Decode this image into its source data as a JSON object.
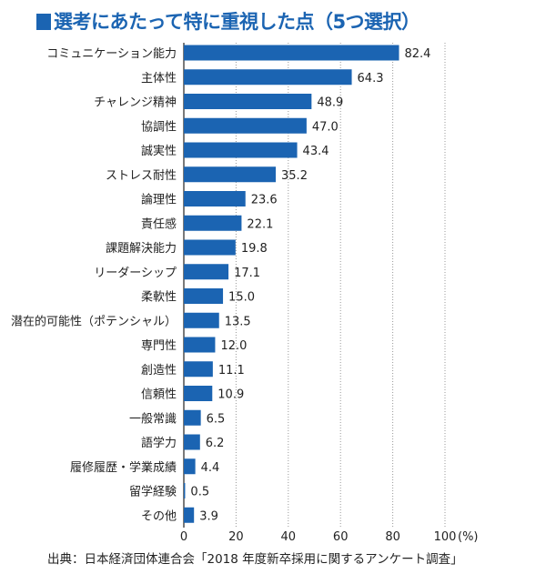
{
  "title": "選考にあたって特に重視した点（5つ選択）",
  "source": "出典：日本経済団体連合会「2018 年度新卒採用に関するアンケート調査」",
  "chart_data": {
    "type": "bar",
    "orientation": "horizontal",
    "title": "選考にあたって特に重視した点（5つ選択）",
    "categories": [
      "コミュニケーション能力",
      "主体性",
      "チャレンジ精神",
      "協調性",
      "誠実性",
      "ストレス耐性",
      "論理性",
      "責任感",
      "課題解決能力",
      "リーダーシップ",
      "柔軟性",
      "潜在的可能性（ポテンシャル）",
      "専門性",
      "創造性",
      "信頼性",
      "一般常識",
      "語学力",
      "履修履歴・学業成績",
      "留学経験",
      "その他"
    ],
    "values": [
      82.4,
      64.3,
      48.9,
      47.0,
      43.4,
      35.2,
      23.6,
      22.1,
      19.8,
      17.1,
      15.0,
      13.5,
      12.0,
      11.1,
      10.9,
      6.5,
      6.2,
      4.4,
      0.5,
      3.9
    ],
    "value_labels": [
      "82.4",
      "64.3",
      "48.9",
      "47.0",
      "43.4",
      "35.2",
      "23.6",
      "22.1",
      "19.8",
      "17.1",
      "15.0",
      "13.5",
      "12.0",
      "11.1",
      "10.9",
      "6.5",
      "6.2",
      "4.4",
      "0.5",
      "3.9"
    ],
    "xlim": [
      0,
      100
    ],
    "x_ticks": [
      "0",
      "20",
      "40",
      "60",
      "80",
      "100"
    ],
    "x_unit": "(%)",
    "grid": "vertical dotted",
    "bar_color": "#1b64b2"
  }
}
